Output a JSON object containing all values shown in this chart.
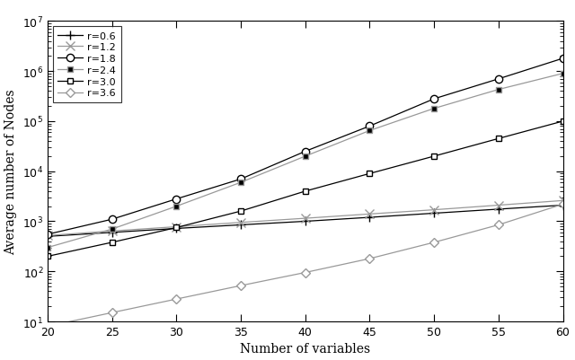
{
  "x": [
    20,
    25,
    30,
    35,
    40,
    45,
    50,
    55,
    60
  ],
  "series": [
    {
      "label": "r=0.6",
      "color": "#000000",
      "linestyle": "-",
      "marker": "+",
      "markersize": 7,
      "linewidth": 0.9,
      "markerfacecolor": "#000000",
      "values": [
        500,
        600,
        720,
        850,
        1000,
        1200,
        1450,
        1750,
        2100
      ]
    },
    {
      "label": "r=1.2",
      "color": "#999999",
      "linestyle": "-",
      "marker": "x",
      "markersize": 7,
      "linewidth": 0.9,
      "markerfacecolor": "#999999",
      "values": [
        520,
        640,
        780,
        950,
        1150,
        1400,
        1700,
        2100,
        2600
      ]
    },
    {
      "label": "r=1.8",
      "color": "#000000",
      "linestyle": "-",
      "marker": "o",
      "markersize": 6,
      "linewidth": 0.9,
      "markerfacecolor": "white",
      "values": [
        550,
        1100,
        2800,
        7000,
        25000,
        80000,
        280000,
        700000,
        1800000
      ]
    },
    {
      "label": "r=2.4",
      "color": "#999999",
      "linestyle": "-",
      "marker": "s",
      "markersize": 5,
      "linewidth": 0.9,
      "markerfacecolor": "#000000",
      "values": [
        300,
        700,
        2000,
        6000,
        20000,
        65000,
        180000,
        430000,
        900000
      ]
    },
    {
      "label": "r=3.0",
      "color": "#000000",
      "linestyle": "-",
      "marker": "s",
      "markersize": 5,
      "linewidth": 0.9,
      "markerfacecolor": "white",
      "values": [
        200,
        380,
        750,
        1600,
        4000,
        9000,
        20000,
        45000,
        100000
      ]
    },
    {
      "label": "r=3.6",
      "color": "#999999",
      "linestyle": "-",
      "marker": "D",
      "markersize": 5,
      "linewidth": 0.9,
      "markerfacecolor": "white",
      "values": [
        8,
        15,
        28,
        52,
        95,
        180,
        380,
        850,
        2200
      ]
    }
  ],
  "xlabel": "Number of variables",
  "ylabel": "Average number of Nodes",
  "ylim_min": 10,
  "ylim_max": 10000000.0,
  "xlim_min": 20,
  "xlim_max": 60,
  "xticks": [
    20,
    25,
    30,
    35,
    40,
    45,
    50,
    55,
    60
  ],
  "background_color": "#ffffff"
}
